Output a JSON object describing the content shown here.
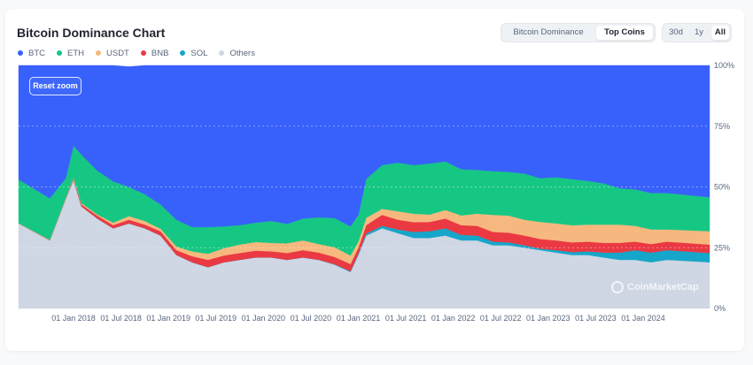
{
  "header": {
    "title": "Bitcoin Dominance Chart"
  },
  "tabs": {
    "btc_dominance": "Bitcoin Dominance",
    "top_coins": "Top Coins",
    "active": "Top Coins"
  },
  "range": {
    "d30": "30d",
    "y1": "1y",
    "all": "All",
    "active": "All"
  },
  "reset_label": "Reset zoom",
  "watermark": "CoinMarketCap",
  "colors": {
    "BTC": "#3861fb",
    "ETH": "#16c784",
    "USDT": "#f6b87e",
    "BNB": "#ea3943",
    "SOL": "#16a6c9",
    "Others": "#cfd6e4"
  },
  "chart_data": {
    "type": "area",
    "stacked": true,
    "title": "Bitcoin Dominance Chart",
    "y_unit": "%",
    "ylim": [
      0,
      100
    ],
    "yticks": [
      "0%",
      "25%",
      "50%",
      "75%",
      "100%"
    ],
    "xticks": [
      "01 Jan 2018",
      "01 Jul 2018",
      "01 Jan 2019",
      "01 Jul 2019",
      "01 Jan 2020",
      "01 Jul 2020",
      "01 Jan 2021",
      "01 Jul 2021",
      "01 Jan 2022",
      "01 Jul 2022",
      "01 Jan 2023",
      "01 Jul 2023",
      "01 Jan 2024"
    ],
    "grid": true,
    "legend": "top-left",
    "x": [
      "2017-08",
      "2017-10",
      "2017-12",
      "2018-01",
      "2018-02",
      "2018-04",
      "2018-06",
      "2018-08",
      "2018-10",
      "2018-12",
      "2019-02",
      "2019-04",
      "2019-06",
      "2019-08",
      "2019-10",
      "2019-12",
      "2020-02",
      "2020-04",
      "2020-06",
      "2020-08",
      "2020-10",
      "2020-12",
      "2021-01",
      "2021-02",
      "2021-04",
      "2021-06",
      "2021-08",
      "2021-10",
      "2021-12",
      "2022-02",
      "2022-04",
      "2022-06",
      "2022-08",
      "2022-10",
      "2022-12",
      "2023-02",
      "2023-04",
      "2023-06",
      "2023-08",
      "2023-10",
      "2023-12",
      "2024-02",
      "2024-04",
      "2024-06"
    ],
    "series": [
      {
        "name": "Others",
        "values": [
          35,
          28,
          45,
          53,
          42,
          37,
          33,
          35,
          33,
          30,
          22,
          19,
          17,
          19,
          20,
          21,
          21,
          20,
          21,
          20,
          18,
          15,
          22,
          30,
          33,
          31,
          29,
          29,
          30,
          28,
          28,
          26,
          26,
          25,
          24,
          23,
          22,
          22,
          21,
          20,
          20,
          19,
          20,
          19
        ]
      },
      {
        "name": "SOL",
        "values": [
          0,
          0,
          0,
          0,
          0,
          0,
          0,
          0,
          0,
          0,
          0,
          0,
          0,
          0,
          0,
          0,
          0,
          0,
          0,
          0,
          0.2,
          0.3,
          0.5,
          0.8,
          1.0,
          1.5,
          2.5,
          2.8,
          3.0,
          2.3,
          2.0,
          1.5,
          1.2,
          1.0,
          0.6,
          1.0,
          1.2,
          1.5,
          2.0,
          3.0,
          4.0,
          4.0,
          4.0,
          3.8
        ]
      },
      {
        "name": "BNB",
        "values": [
          0,
          0.1,
          0.2,
          0.5,
          0.8,
          1.2,
          1.3,
          1.5,
          1.5,
          1.8,
          2.0,
          2.5,
          3.0,
          2.8,
          2.8,
          2.8,
          2.5,
          2.8,
          3.0,
          3.0,
          3.0,
          3.0,
          2.5,
          3.5,
          4.5,
          4.0,
          4.0,
          3.8,
          4.0,
          4.0,
          4.0,
          4.0,
          4.0,
          4.0,
          4.0,
          4.0,
          4.0,
          4.0,
          4.0,
          4.0,
          3.5,
          3.5,
          3.5,
          3.5
        ]
      },
      {
        "name": "USDT",
        "values": [
          0.1,
          0.2,
          0.3,
          0.4,
          0.5,
          0.5,
          1.0,
          1.5,
          1.5,
          1.0,
          1.5,
          2.0,
          2.5,
          3.0,
          3.5,
          3.5,
          3.5,
          4.0,
          4.0,
          3.5,
          4.0,
          3.5,
          2.5,
          3.0,
          2.5,
          3.5,
          3.5,
          3.0,
          3.5,
          4.0,
          5.0,
          7.0,
          7.0,
          6.5,
          7.0,
          7.0,
          7.0,
          7.0,
          7.5,
          7.5,
          6.5,
          6.0,
          5.0,
          5.5
        ]
      },
      {
        "name": "ETH",
        "values": [
          18,
          17,
          8,
          13,
          20,
          18,
          17,
          12,
          11,
          10,
          11,
          10,
          11,
          9,
          8,
          8,
          9,
          8,
          9,
          11,
          12,
          12,
          11,
          16,
          18,
          20,
          20,
          21,
          20,
          19,
          18,
          18,
          18,
          19,
          18,
          19,
          19,
          18,
          17,
          15,
          15,
          15,
          15,
          14
        ]
      },
      {
        "name": "BTC",
        "values": [
          46.9,
          54.7,
          46.5,
          33.1,
          36.7,
          43.3,
          47.7,
          49.5,
          53.0,
          57.2,
          63.5,
          66.5,
          66.5,
          66.2,
          65.7,
          64.7,
          64.0,
          65.2,
          63.0,
          62.5,
          62.8,
          66.2,
          61.5,
          46.7,
          41.0,
          40.0,
          41.0,
          40.4,
          39.5,
          42.7,
          43.0,
          43.5,
          43.8,
          44.5,
          46.4,
          46.0,
          46.8,
          47.5,
          48.5,
          50.5,
          51.0,
          52.5,
          52.5,
          54.2
        ]
      }
    ]
  }
}
